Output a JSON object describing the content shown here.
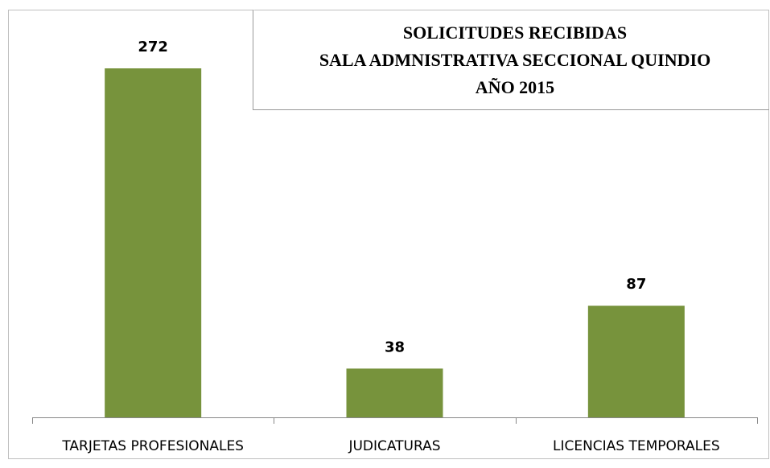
{
  "chart_data": {
    "type": "bar",
    "title": [
      "SOLICITUDES RECIBIDAS",
      "SALA ADMNISTRATIVA SECCIONAL QUINDIO",
      "AÑO 2015"
    ],
    "categories": [
      "TARJETAS PROFESIONALES",
      "JUDICATURAS",
      "LICENCIAS TEMPORALES"
    ],
    "values": [
      272,
      38,
      87
    ],
    "color": "#77933c"
  }
}
